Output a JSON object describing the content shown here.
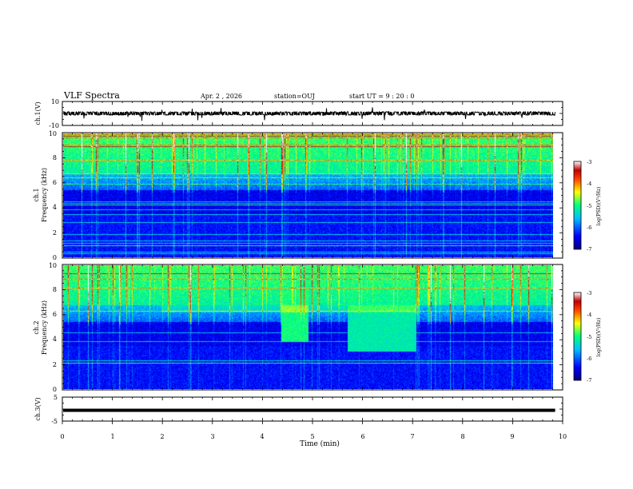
{
  "header": {
    "title": "VLF Spectra",
    "date": "Apr. 2 , 2026",
    "station": "station=OUJ",
    "start": "start UT =  9 : 20 : 0"
  },
  "chart_data": [
    {
      "type": "line",
      "name": "ch1-waveform",
      "ylabel": "ch.1(V)",
      "ylim": [
        -10,
        10
      ],
      "yticks": [
        "10",
        "-10"
      ],
      "xlim": [
        0,
        10
      ],
      "data_end_min": 9.85,
      "baseline_v": 0
    },
    {
      "type": "heatmap",
      "name": "ch1-spectrogram",
      "ylabel_line1": "ch.1",
      "ylabel_line2": "Frequency (kHz)",
      "ylim": [
        0,
        10
      ],
      "yticks": [
        "0",
        "2",
        "4",
        "6",
        "8",
        "10"
      ],
      "xlim": [
        0,
        10
      ],
      "colorbar": {
        "label": "log(PSD)(V²/Hz)",
        "range": [
          -7,
          -3
        ],
        "ticks": [
          "-3",
          "-4",
          "-5",
          "-6",
          "-7"
        ]
      }
    },
    {
      "type": "heatmap",
      "name": "ch2-spectrogram",
      "ylabel_line1": "ch.2",
      "ylabel_line2": "Frequency (kHz)",
      "ylim": [
        0,
        10
      ],
      "yticks": [
        "0",
        "2",
        "4",
        "6",
        "8",
        "10"
      ],
      "xlim": [
        0,
        10
      ],
      "colorbar": {
        "label": "log(PSD)(V²/Hz)",
        "range": [
          -7,
          -3
        ],
        "ticks": [
          "-3",
          "-4",
          "-5",
          "-6",
          "-7"
        ]
      }
    },
    {
      "type": "line",
      "name": "ch3-waveform",
      "ylabel": "ch.3(V)",
      "ylim": [
        -5,
        5
      ],
      "yticks": [
        "5",
        "-5"
      ],
      "xlim": [
        0,
        10
      ],
      "data_end_min": 9.85,
      "baseline_v": -0.5
    }
  ],
  "xaxis": {
    "label": "Time (min)",
    "ticks": [
      "0",
      "1",
      "2",
      "3",
      "4",
      "5",
      "6",
      "7",
      "8",
      "9",
      "10"
    ]
  }
}
